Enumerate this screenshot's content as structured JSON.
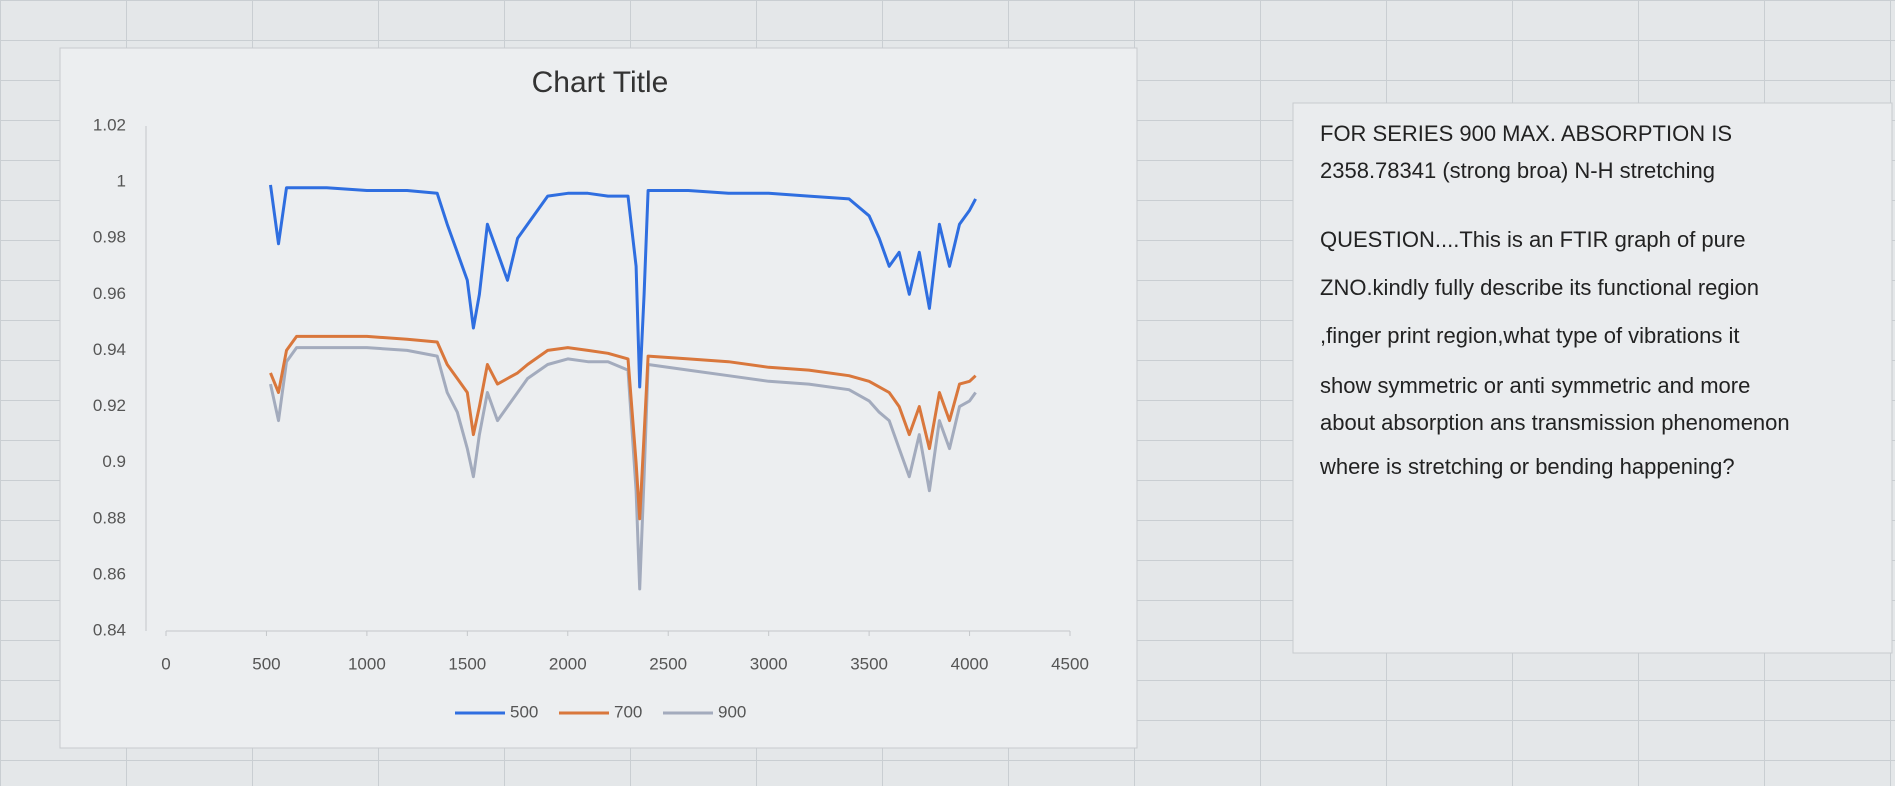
{
  "chart_data": {
    "type": "line",
    "title": "Chart Title",
    "x": [
      520,
      560,
      600,
      650,
      800,
      1000,
      1200,
      1350,
      1400,
      1450,
      1500,
      1530,
      1560,
      1600,
      1650,
      1700,
      1750,
      1800,
      1900,
      2000,
      2100,
      2200,
      2300,
      2340,
      2358,
      2380,
      2400,
      2600,
      2800,
      3000,
      3200,
      3400,
      3500,
      3550,
      3600,
      3650,
      3700,
      3750,
      3800,
      3850,
      3900,
      3950,
      4000,
      4030
    ],
    "series": [
      {
        "name": "500",
        "color": "#2f6ee0",
        "values": [
          0.999,
          0.978,
          0.998,
          0.998,
          0.998,
          0.997,
          0.997,
          0.996,
          0.985,
          0.975,
          0.965,
          0.948,
          0.96,
          0.985,
          0.975,
          0.965,
          0.98,
          0.985,
          0.995,
          0.996,
          0.996,
          0.995,
          0.995,
          0.97,
          0.927,
          0.96,
          0.997,
          0.997,
          0.996,
          0.996,
          0.995,
          0.994,
          0.988,
          0.98,
          0.97,
          0.975,
          0.96,
          0.975,
          0.955,
          0.985,
          0.97,
          0.985,
          0.99,
          0.994
        ]
      },
      {
        "name": "700",
        "color": "#d9773c",
        "values": [
          0.932,
          0.925,
          0.94,
          0.945,
          0.945,
          0.945,
          0.944,
          0.943,
          0.935,
          0.93,
          0.925,
          0.91,
          0.92,
          0.935,
          0.928,
          0.93,
          0.932,
          0.935,
          0.94,
          0.941,
          0.94,
          0.939,
          0.937,
          0.9,
          0.88,
          0.91,
          0.938,
          0.937,
          0.936,
          0.934,
          0.933,
          0.931,
          0.929,
          0.927,
          0.925,
          0.92,
          0.91,
          0.92,
          0.905,
          0.925,
          0.915,
          0.928,
          0.929,
          0.931
        ]
      },
      {
        "name": "900",
        "color": "#a3abbd",
        "values": [
          0.928,
          0.915,
          0.936,
          0.941,
          0.941,
          0.941,
          0.94,
          0.938,
          0.925,
          0.918,
          0.905,
          0.895,
          0.91,
          0.925,
          0.915,
          0.92,
          0.925,
          0.93,
          0.935,
          0.937,
          0.936,
          0.936,
          0.933,
          0.89,
          0.855,
          0.895,
          0.935,
          0.933,
          0.931,
          0.929,
          0.928,
          0.926,
          0.922,
          0.918,
          0.915,
          0.905,
          0.895,
          0.91,
          0.89,
          0.915,
          0.905,
          0.92,
          0.922,
          0.925
        ]
      }
    ],
    "xlim": [
      0,
      4500
    ],
    "xticks": [
      0,
      500,
      1000,
      1500,
      2000,
      2500,
      3000,
      3500,
      4000,
      4500
    ],
    "ylim": [
      0.84,
      1.02
    ],
    "yticks": [
      0.84,
      0.86,
      0.88,
      0.9,
      0.92,
      0.94,
      0.96,
      0.98,
      1,
      1.02
    ],
    "grid": false,
    "legend": "bottom"
  },
  "text_box": {
    "lines": [
      "FOR SERIES 900 MAX. ABSORPTION IS",
      "2358.78341 (strong broa) N-H stretching",
      "QUESTION....This is an FTIR graph of pure",
      "ZNO.kindly fully describe its functional region",
      ",finger print region,what type of vibrations it",
      "show symmetric or anti symmetric and more",
      "about absorption ans transmission phenomenon",
      "where is stretching or bending happening?"
    ]
  }
}
